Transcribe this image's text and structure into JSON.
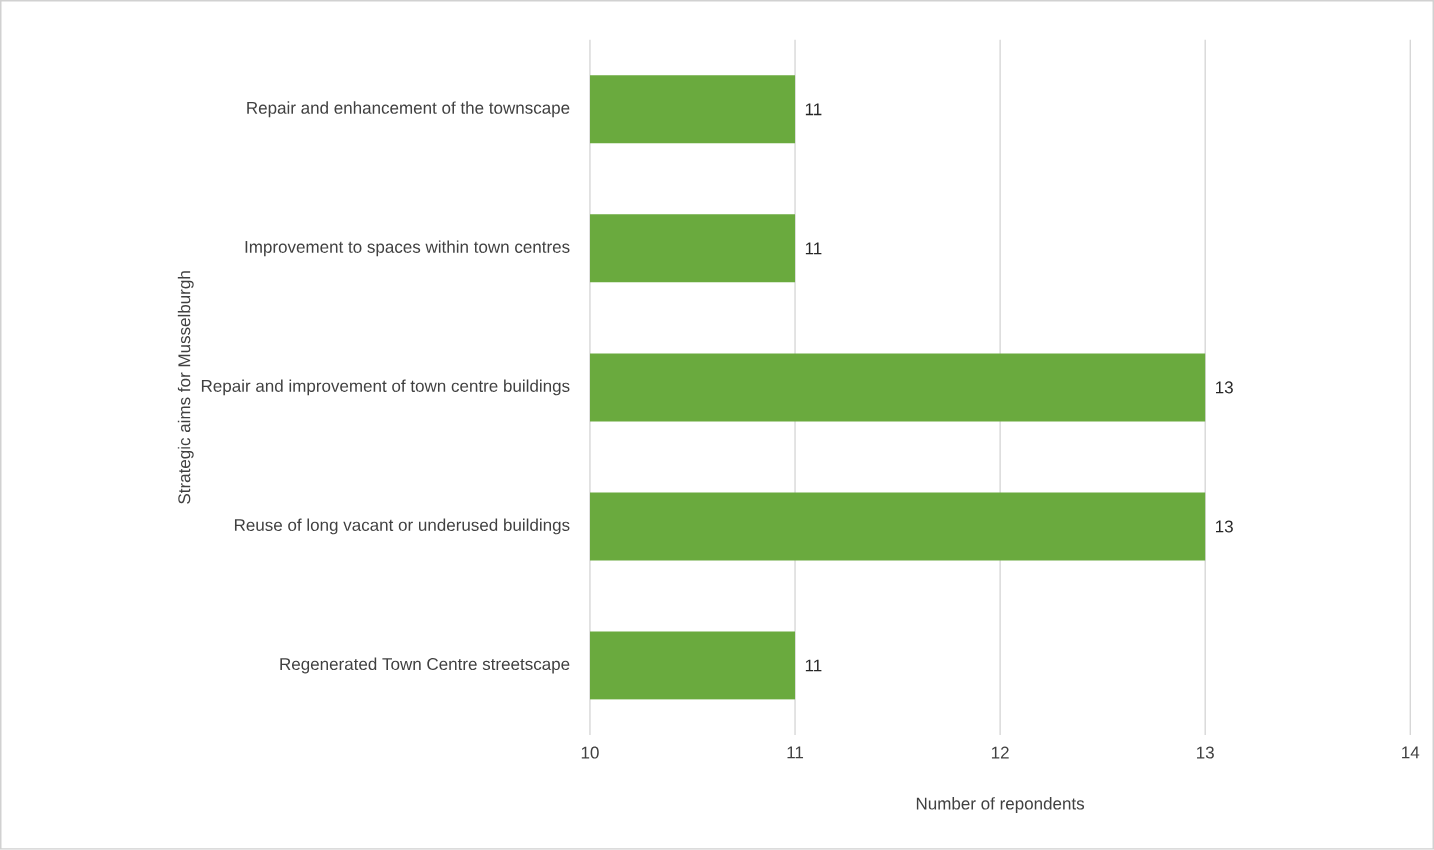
{
  "chart_data": {
    "type": "bar",
    "orientation": "horizontal",
    "xlabel": "Number of repondents",
    "ylabel": "Strategic aims for Musselburgh",
    "categories": [
      "Repair and enhancement of the townscape",
      "Improvement to spaces within town centres",
      "Repair and improvement of town centre buildings",
      "Reuse of long vacant or underused buildings",
      "Regenerated Town Centre streetscape"
    ],
    "values": [
      11,
      11,
      13,
      13,
      11
    ],
    "color": "#6aaa3e",
    "xlim": [
      10,
      14
    ],
    "xticks": [
      10,
      11,
      12,
      13,
      14
    ],
    "grid": "x",
    "data_labels": true
  }
}
